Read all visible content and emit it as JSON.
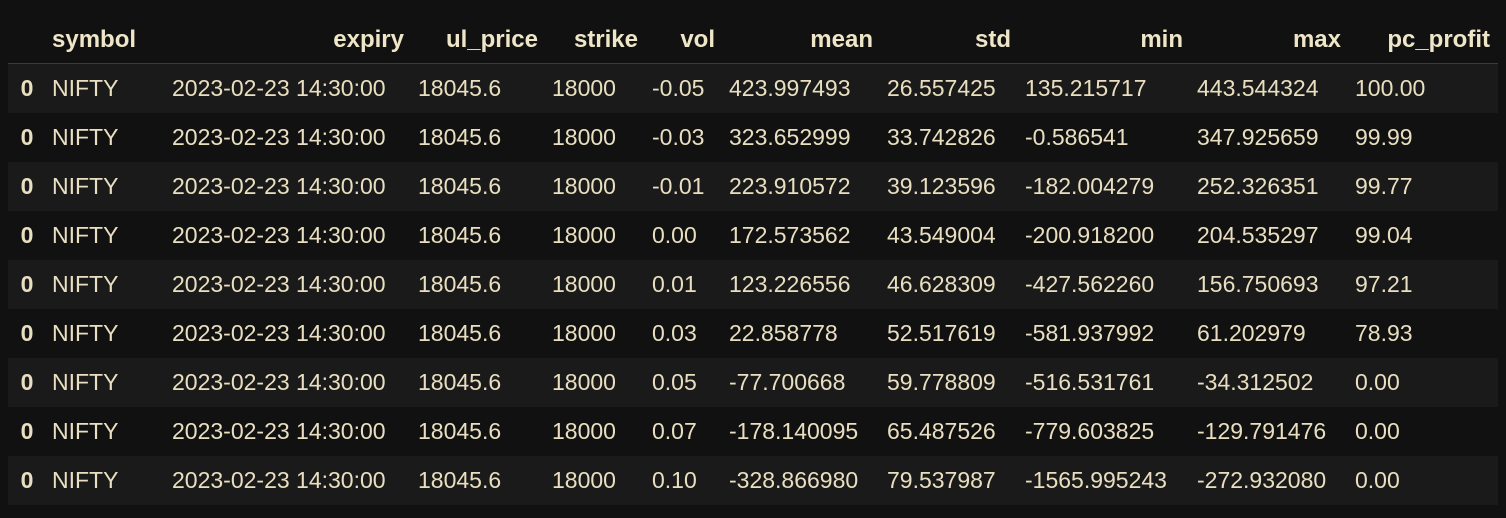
{
  "table": {
    "columns": [
      "",
      "symbol",
      "expiry",
      "ul_price",
      "strike",
      "vol",
      "mean",
      "std",
      "min",
      "max",
      "pc_profit"
    ],
    "rows": [
      [
        "0",
        "NIFTY",
        "2023-02-23 14:30:00",
        "18045.6",
        "18000",
        "-0.05",
        "423.997493",
        "26.557425",
        "135.215717",
        "443.544324",
        "100.00"
      ],
      [
        "0",
        "NIFTY",
        "2023-02-23 14:30:00",
        "18045.6",
        "18000",
        "-0.03",
        "323.652999",
        "33.742826",
        "-0.586541",
        "347.925659",
        "99.99"
      ],
      [
        "0",
        "NIFTY",
        "2023-02-23 14:30:00",
        "18045.6",
        "18000",
        "-0.01",
        "223.910572",
        "39.123596",
        "-182.004279",
        "252.326351",
        "99.77"
      ],
      [
        "0",
        "NIFTY",
        "2023-02-23 14:30:00",
        "18045.6",
        "18000",
        "0.00",
        "172.573562",
        "43.549004",
        "-200.918200",
        "204.535297",
        "99.04"
      ],
      [
        "0",
        "NIFTY",
        "2023-02-23 14:30:00",
        "18045.6",
        "18000",
        "0.01",
        "123.226556",
        "46.628309",
        "-427.562260",
        "156.750693",
        "97.21"
      ],
      [
        "0",
        "NIFTY",
        "2023-02-23 14:30:00",
        "18045.6",
        "18000",
        "0.03",
        "22.858778",
        "52.517619",
        "-581.937992",
        "61.202979",
        "78.93"
      ],
      [
        "0",
        "NIFTY",
        "2023-02-23 14:30:00",
        "18045.6",
        "18000",
        "0.05",
        "-77.700668",
        "59.778809",
        "-516.531761",
        "-34.312502",
        "0.00"
      ],
      [
        "0",
        "NIFTY",
        "2023-02-23 14:30:00",
        "18045.6",
        "18000",
        "0.07",
        "-178.140095",
        "65.487526",
        "-779.603825",
        "-129.791476",
        "0.00"
      ],
      [
        "0",
        "NIFTY",
        "2023-02-23 14:30:00",
        "18045.6",
        "18000",
        "0.10",
        "-328.866980",
        "79.537987",
        "-1565.995243",
        "-272.932080",
        "0.00"
      ]
    ]
  },
  "colors": {
    "background": "#111111",
    "row_alt": "#1a1a1a",
    "text": "#e9dfc0"
  }
}
